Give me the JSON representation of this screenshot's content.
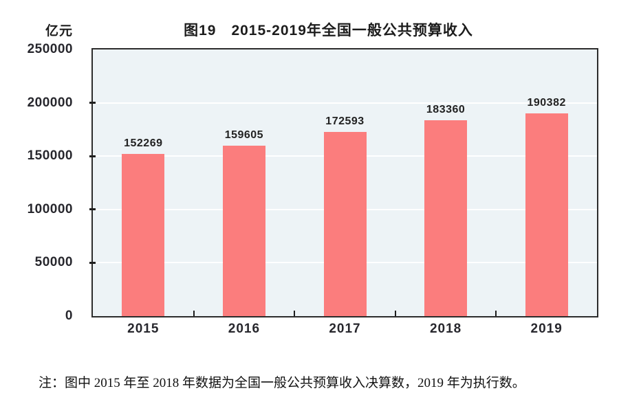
{
  "figure": {
    "unit_label": "亿元",
    "title": "图19　2015-2019年全国一般公共预算收入",
    "note": "注：图中 2015 年至 2018 年数据为全国一般公共预算收入决算数，2019 年为执行数。"
  },
  "chart_data": {
    "type": "bar",
    "title": "图19　2015-2019年全国一般公共预算收入",
    "categories": [
      "2015",
      "2016",
      "2017",
      "2018",
      "2019"
    ],
    "values": [
      152269,
      159605,
      172593,
      183360,
      190382
    ],
    "data_labels": [
      "152269",
      "159605",
      "172593",
      "183360",
      "190382"
    ],
    "xlabel": "",
    "ylabel": "亿元",
    "ylim": [
      0,
      250000
    ],
    "y_ticks": [
      0,
      50000,
      100000,
      150000,
      200000,
      250000
    ],
    "grid": true,
    "legend": "none",
    "colors": {
      "bar": "#fb7d7d",
      "plot_background": "#edf3f6",
      "gridline": "#ffffff",
      "frame": "#2b2b2b",
      "text": "#1c1c1c"
    }
  }
}
